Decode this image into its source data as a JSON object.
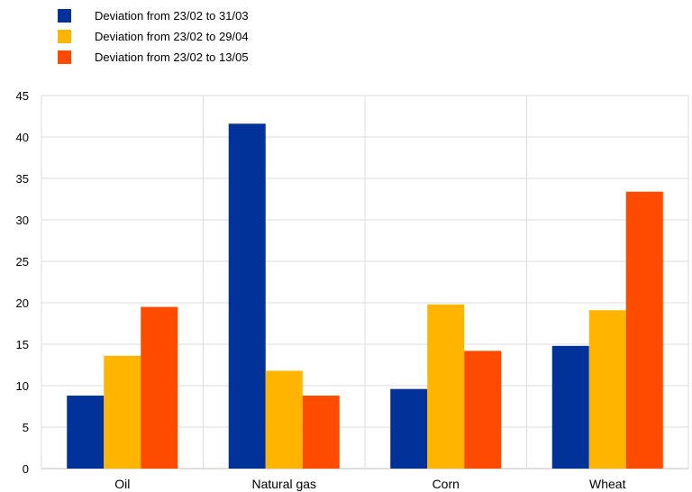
{
  "chart_data": {
    "type": "bar",
    "categories": [
      "Oil",
      "Natural gas",
      "Corn",
      "Wheat"
    ],
    "series": [
      {
        "name": "Deviation from 23/02 to 31/03",
        "color": "#003299",
        "values": [
          8.8,
          41.6,
          9.6,
          14.8
        ]
      },
      {
        "name": "Deviation from 23/02 to 29/04",
        "color": "#FFB400",
        "values": [
          13.6,
          11.8,
          19.8,
          19.1
        ]
      },
      {
        "name": "Deviation from 23/02 to 13/05",
        "color": "#FF4B00",
        "values": [
          19.5,
          8.8,
          14.2,
          33.4
        ]
      }
    ],
    "ylim": [
      0,
      45
    ],
    "yticks": [
      "0",
      "5",
      "10",
      "15",
      "20",
      "25",
      "30",
      "35",
      "40",
      "45"
    ],
    "grid": true,
    "legend_position": "top-left"
  }
}
